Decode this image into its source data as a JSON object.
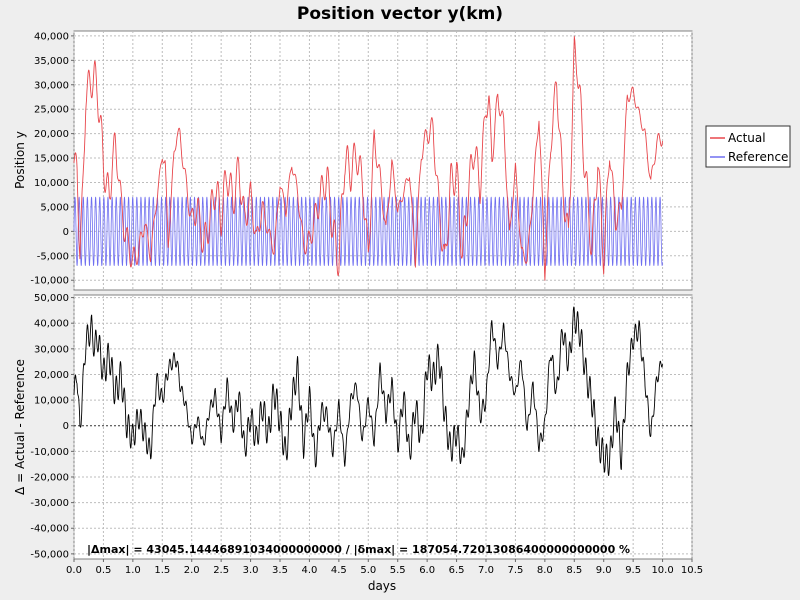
{
  "chart_data": [
    {
      "type": "line",
      "title": "Position vector y(km)",
      "ylabel": "Position y",
      "xlim": [
        0,
        10.5
      ],
      "ylim": [
        -12000,
        41000
      ],
      "y_ticks": [
        -10000,
        -5000,
        0,
        5000,
        10000,
        15000,
        20000,
        25000,
        30000,
        35000,
        40000
      ],
      "y_tick_labels": [
        "-10,000",
        "-5,000",
        "0",
        "5,000",
        "10,000",
        "15,000",
        "20,000",
        "25,000",
        "30,000",
        "35,000",
        "40,000"
      ],
      "grid": true,
      "legend_position": "right",
      "series": [
        {
          "name": "Actual",
          "color": "#e8474c",
          "x": [
            0,
            0.05,
            0.1,
            0.15,
            0.2,
            0.3,
            0.35,
            0.4,
            0.5,
            0.6,
            0.65,
            0.7,
            0.75,
            0.8,
            0.9,
            1.0,
            1.1,
            1.2,
            1.3,
            1.4,
            1.5,
            1.55,
            1.6,
            1.7,
            1.75,
            1.8,
            1.9,
            2.0,
            2.1,
            2.2,
            2.3,
            2.4,
            2.5,
            2.6,
            2.7,
            2.8,
            2.9,
            3.0,
            3.1,
            3.2,
            3.3,
            3.4,
            3.5,
            3.6,
            3.7,
            3.8,
            3.9,
            4.0,
            4.1,
            4.2,
            4.3,
            4.4,
            4.5,
            4.6,
            4.7,
            4.8,
            4.9,
            5.0,
            5.1,
            5.2,
            5.3,
            5.4,
            5.5,
            5.6,
            5.7,
            5.8,
            5.9,
            6.0,
            6.05,
            6.1,
            6.2,
            6.3,
            6.4,
            6.5,
            6.6,
            6.7,
            6.8,
            6.9,
            7.0,
            7.05,
            7.1,
            7.2,
            7.3,
            7.4,
            7.5,
            7.6,
            7.7,
            7.8,
            7.9,
            8.0,
            8.1,
            8.2,
            8.3,
            8.4,
            8.5,
            8.55,
            8.6,
            8.7,
            8.8,
            8.9,
            9.0,
            9.1,
            9.2,
            9.3,
            9.4,
            9.5,
            9.6,
            9.7,
            9.8,
            9.9,
            10.0
          ],
          "y": [
            14000,
            13000,
            -4000,
            8000,
            28000,
            31000,
            31300,
            29000,
            14000,
            6000,
            15000,
            16800,
            14000,
            5000,
            -2000,
            -6000,
            -4000,
            2000,
            -5000,
            6000,
            15500,
            14000,
            -3000,
            16000,
            20000,
            19500,
            10000,
            2000,
            5000,
            -3000,
            2000,
            9000,
            3000,
            12000,
            6000,
            13000,
            2000,
            7500,
            -2000,
            5000,
            0,
            -4000,
            10000,
            4000,
            14000,
            8000,
            -3000,
            -2000,
            3000,
            8000,
            11000,
            0,
            -6000,
            15000,
            12000,
            16000,
            10000,
            -5000,
            19000,
            11000,
            0,
            14000,
            4000,
            8000,
            12000,
            -6000,
            16000,
            20000,
            20500,
            21000,
            5000,
            -7000,
            10000,
            12000,
            -5000,
            8000,
            17500,
            9000,
            26000,
            26500,
            15000,
            27500,
            22000,
            -1000,
            13000,
            -4000,
            -6000,
            8000,
            24000,
            -8000,
            18000,
            31000,
            10000,
            -2000,
            36000,
            35000,
            26000,
            10000,
            -4000,
            15000,
            -6000,
            17000,
            2000,
            5000,
            27500,
            28500,
            24000,
            20000,
            10000,
            18000,
            19500
          ]
        },
        {
          "name": "Reference",
          "color": "#6f6ff0",
          "x": [
            0,
            10
          ],
          "y": [
            -7000,
            7000
          ],
          "note_amplitude": 7000,
          "oscillation_period_days": 0.07
        }
      ]
    },
    {
      "type": "line",
      "xlabel": "days",
      "ylabel": "Δ = Actual - Reference",
      "xlim": [
        0,
        10.5
      ],
      "x_ticks": [
        0,
        0.5,
        1,
        1.5,
        2,
        2.5,
        3,
        3.5,
        4,
        4.5,
        5,
        5.5,
        6,
        6.5,
        7,
        7.5,
        8,
        8.5,
        9,
        9.5,
        10,
        10.5
      ],
      "x_tick_labels": [
        "0.0",
        "0.5",
        "1.0",
        "1.5",
        "2.0",
        "2.5",
        "3.0",
        "3.5",
        "4.0",
        "4.5",
        "5.0",
        "5.5",
        "6.0",
        "6.5",
        "7.0",
        "7.5",
        "8.0",
        "8.5",
        "9.0",
        "9.5",
        "10.0",
        "10.5"
      ],
      "ylim": [
        -52000,
        51000
      ],
      "y_ticks": [
        -50000,
        -40000,
        -30000,
        -20000,
        -10000,
        0,
        10000,
        20000,
        30000,
        40000,
        50000
      ],
      "y_tick_labels": [
        "-50,000",
        "-40,000",
        "-30,000",
        "-20,000",
        "-10,000",
        "0",
        "10,000",
        "20,000",
        "30,000",
        "40,000",
        "50,000"
      ],
      "grid": true,
      "series": [
        {
          "name": "Δ",
          "color": "#000000",
          "x": [
            0,
            0.05,
            0.1,
            0.15,
            0.2,
            0.3,
            0.35,
            0.4,
            0.5,
            0.6,
            0.7,
            0.8,
            0.9,
            1.0,
            1.1,
            1.2,
            1.3,
            1.4,
            1.5,
            1.6,
            1.7,
            1.75,
            1.8,
            1.9,
            2.0,
            2.1,
            2.2,
            2.3,
            2.4,
            2.5,
            2.6,
            2.7,
            2.8,
            2.9,
            3.0,
            3.1,
            3.2,
            3.3,
            3.4,
            3.5,
            3.6,
            3.7,
            3.8,
            3.9,
            4.0,
            4.1,
            4.2,
            4.3,
            4.4,
            4.5,
            4.6,
            4.7,
            4.8,
            4.9,
            5.0,
            5.1,
            5.2,
            5.3,
            5.4,
            5.5,
            5.6,
            5.7,
            5.8,
            5.9,
            6.0,
            6.1,
            6.2,
            6.3,
            6.4,
            6.5,
            6.6,
            6.7,
            6.8,
            6.9,
            7.0,
            7.1,
            7.2,
            7.3,
            7.4,
            7.5,
            7.6,
            7.7,
            7.8,
            7.9,
            8.0,
            8.1,
            8.2,
            8.3,
            8.4,
            8.5,
            8.6,
            8.7,
            8.8,
            8.9,
            9.0,
            9.1,
            9.2,
            9.3,
            9.4,
            9.5,
            9.6,
            9.7,
            9.8,
            9.9,
            10.0
          ],
          "y": [
            12000,
            21000,
            -2000,
            15000,
            33000,
            38000,
            30000,
            35000,
            20000,
            28000,
            12000,
            20000,
            0,
            -5000,
            4000,
            -3000,
            -11000,
            18000,
            10000,
            22000,
            26000,
            25000,
            16000,
            8000,
            -6000,
            3000,
            -8000,
            6000,
            12000,
            -4000,
            16000,
            0,
            12000,
            -10000,
            4000,
            -6000,
            8000,
            -4000,
            14000,
            2000,
            -12000,
            10000,
            22000,
            -8000,
            12000,
            -14000,
            6000,
            4000,
            -10000,
            8000,
            -14000,
            10000,
            16000,
            -6000,
            10000,
            -6000,
            22000,
            4000,
            16000,
            -8000,
            12000,
            -12000,
            8000,
            -6000,
            24000,
            18000,
            28000,
            4000,
            -10000,
            -2000,
            -14000,
            8000,
            26000,
            4000,
            10000,
            40000,
            24000,
            38000,
            20000,
            12000,
            26000,
            -2000,
            16000,
            -8000,
            0,
            30000,
            12000,
            38000,
            24000,
            43000,
            36000,
            20000,
            10000,
            -6000,
            -12000,
            -14000,
            8000,
            -13000,
            20000,
            34000,
            38000,
            18000,
            -4000,
            18000,
            26000
          ]
        }
      ]
    }
  ],
  "stats_label": "|Δmax| = 43045.14446891034000000000       /      |δmax| = 187054.72013086400000000000 %",
  "legend": [
    {
      "name": "Actual",
      "color": "#e8474c"
    },
    {
      "name": "Reference",
      "color": "#6f6ff0"
    }
  ]
}
